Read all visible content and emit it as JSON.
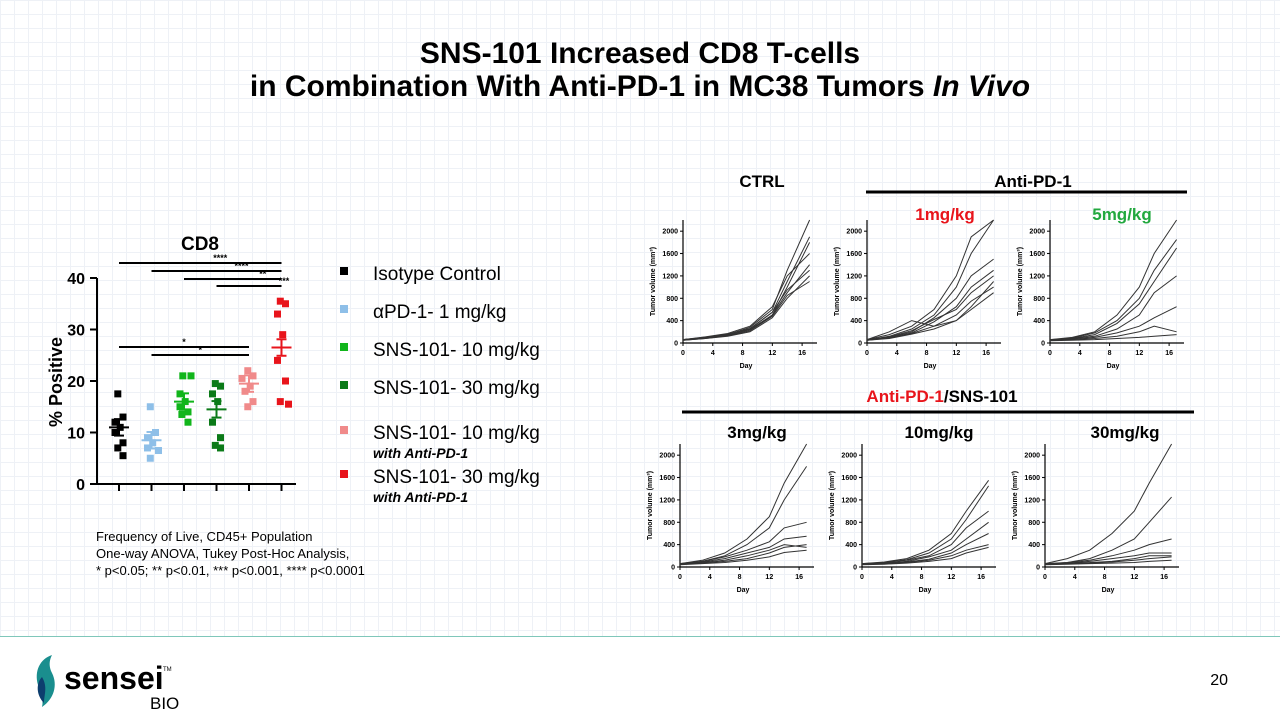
{
  "slide": {
    "title_line1": "SNS-101 Increased CD8 T-cells",
    "title_line2_main": "in Combination With Anti-PD-1 in MC38 Tumors ",
    "title_line2_italic": "In Vivo",
    "page_number": "20",
    "notes": [
      "Frequency of Live, CD45+ Population",
      "One-way ANOVA, Tukey Post-Hoc Analysis,",
      "* p<0.05; ** p<0.01, *** p<0.001, **** p<0.0001"
    ],
    "logo_word": "sensei",
    "logo_tm": "TM",
    "logo_sub": "BIO",
    "colors": {
      "red": "#e8141b",
      "green": "#22a83f",
      "teal": "#1a8e8e"
    }
  },
  "chart_data": [
    {
      "type": "scatter",
      "title": "CD8",
      "ylabel": "% Positive",
      "ylim": [
        0,
        40
      ],
      "yticks": [
        "0",
        "10",
        "20",
        "30",
        "40"
      ],
      "series": [
        {
          "name": "Isotype Control",
          "color": "#000000",
          "values": [
            17.5,
            13,
            12,
            11,
            10,
            8,
            7,
            5.5
          ],
          "mean": 11
        },
        {
          "name": "αPD-1- 1 mg/kg",
          "color": "#8ebfe8",
          "values": [
            15,
            10,
            9,
            8,
            7,
            6.5,
            5
          ],
          "mean": 8.5
        },
        {
          "name": "SNS-101- 10 mg/kg",
          "color": "#11b51b",
          "values": [
            21,
            21,
            17.5,
            16,
            15,
            14,
            13.5,
            12
          ],
          "mean": 16
        },
        {
          "name": "SNS-101- 30 mg/kg",
          "color": "#0b7a18",
          "values": [
            19.5,
            19,
            17.5,
            16,
            12,
            9,
            7.5,
            7
          ],
          "mean": 14.5
        },
        {
          "name": "SNS-101- 10 mg/kg",
          "sub": "with Anti-PD-1",
          "color": "#f08a8a",
          "values": [
            22,
            21,
            20.5,
            19,
            18,
            16,
            15
          ],
          "mean": 19.5
        },
        {
          "name": "SNS-101- 30 mg/kg",
          "sub": "with Anti-PD-1",
          "color": "#e8141b",
          "values": [
            35.5,
            35,
            33,
            29,
            24,
            20,
            16,
            15.5
          ],
          "mean": 26.5
        }
      ],
      "significance": [
        {
          "from": 0,
          "to": 5,
          "label": "****"
        },
        {
          "from": 1,
          "to": 5,
          "label": "****"
        },
        {
          "from": 2,
          "to": 5,
          "label": "**"
        },
        {
          "from": 3,
          "to": 5,
          "label": "***"
        },
        {
          "from": 0,
          "to": 4,
          "label": "*"
        },
        {
          "from": 1,
          "to": 4,
          "label": "*"
        }
      ]
    },
    {
      "type": "line",
      "panels": [
        {
          "label": "CTRL",
          "color": "#000000",
          "xlabel": "Day",
          "ylabel": "Tumor volume (mm³)",
          "lines": [
            [
              60,
              100,
              150,
              280,
              600,
              1300,
              2200
            ],
            [
              60,
              90,
              140,
              250,
              550,
              1100,
              1900
            ],
            [
              50,
              80,
              130,
              220,
              500,
              1000,
              1800
            ],
            [
              60,
              110,
              170,
              300,
              650,
              1200,
              1600
            ],
            [
              50,
              90,
              140,
              240,
              500,
              900,
              1400
            ],
            [
              60,
              100,
              160,
              260,
              550,
              950,
              1300
            ],
            [
              50,
              80,
              120,
              200,
              450,
              800,
              1200
            ],
            [
              60,
              90,
              130,
              220,
              480,
              850,
              1100
            ]
          ]
        },
        {
          "label": "1mg/kg",
          "color": "#e8141b",
          "xlabel": "Day",
          "ylabel": "Tumor volume (mm³)",
          "lines": [
            [
              60,
              150,
              300,
              600,
              1200,
              1900,
              2300
            ],
            [
              50,
              120,
              250,
              500,
              1000,
              1600,
              2200
            ],
            [
              60,
              100,
              200,
              450,
              800,
              1200,
              1500
            ],
            [
              50,
              90,
              180,
              380,
              650,
              1000,
              1300
            ],
            [
              60,
              110,
              220,
              420,
              600,
              900,
              1200
            ],
            [
              50,
              100,
              170,
              300,
              500,
              750,
              1000
            ],
            [
              60,
              200,
              400,
              300,
              400,
              600,
              900
            ],
            [
              50,
              80,
              160,
              250,
              400,
              650,
              1100
            ]
          ]
        },
        {
          "label": "5mg/kg",
          "color": "#22a83f",
          "xlabel": "Day",
          "ylabel": "Tumor volume (mm³)",
          "lines": [
            [
              60,
              100,
              200,
              500,
              1000,
              1600,
              2200
            ],
            [
              50,
              90,
              180,
              400,
              800,
              1300,
              1850
            ],
            [
              60,
              80,
              150,
              350,
              700,
              1100,
              1700
            ],
            [
              50,
              80,
              120,
              250,
              500,
              900,
              1200
            ],
            [
              60,
              70,
              100,
              180,
              300,
              450,
              650
            ],
            [
              50,
              60,
              80,
              120,
              200,
              300,
              200
            ],
            [
              40,
              50,
              60,
              80,
              100,
              120,
              150
            ]
          ]
        },
        {
          "label": "3mg/kg",
          "xlabel": "Day",
          "ylabel": "Tumor volume (mm³)",
          "lines": [
            [
              60,
              120,
              250,
              500,
              900,
              1500,
              2300
            ],
            [
              50,
              100,
              200,
              400,
              700,
              1200,
              1800
            ],
            [
              60,
              100,
              180,
              300,
              450,
              700,
              800
            ],
            [
              50,
              90,
              150,
              250,
              350,
              500,
              550
            ],
            [
              60,
              80,
              120,
              200,
              300,
              400,
              350
            ],
            [
              50,
              70,
              100,
              150,
              250,
              350,
              400
            ],
            [
              40,
              60,
              80,
              120,
              180,
              260,
              300
            ]
          ]
        },
        {
          "label": "10mg/kg",
          "xlabel": "Day",
          "ylabel": "Tumor volume (mm³)",
          "lines": [
            [
              60,
              90,
              150,
              300,
              600,
              1000,
              1550
            ],
            [
              50,
              80,
              130,
              250,
              500,
              850,
              1450
            ],
            [
              60,
              80,
              120,
              200,
              400,
              700,
              1000
            ],
            [
              50,
              70,
              100,
              180,
              300,
              500,
              800
            ],
            [
              60,
              70,
              90,
              140,
              250,
              400,
              600
            ],
            [
              50,
              60,
              80,
              120,
              200,
              300,
              400
            ],
            [
              40,
              50,
              70,
              100,
              150,
              250,
              350
            ]
          ]
        },
        {
          "label": "30mg/kg",
          "xlabel": "Day",
          "ylabel": "Tumor volume (mm³)",
          "lines": [
            [
              60,
              150,
              300,
              600,
              1000,
              1500,
              2300
            ],
            [
              50,
              80,
              150,
              300,
              500,
              800,
              1250
            ],
            [
              60,
              80,
              120,
              200,
              300,
              400,
              500
            ],
            [
              50,
              70,
              100,
              150,
              200,
              250,
              250
            ],
            [
              60,
              70,
              80,
              100,
              150,
              200,
              200
            ],
            [
              50,
              60,
              70,
              90,
              120,
              150,
              180
            ],
            [
              40,
              50,
              60,
              70,
              80,
              100,
              120
            ]
          ]
        }
      ],
      "x": [
        0,
        3,
        6,
        9,
        12,
        14,
        17
      ],
      "xticks": [
        "0",
        "4",
        "8",
        "12",
        "16"
      ],
      "yticks": [
        "0",
        "400",
        "800",
        "1200",
        "1600",
        "2000"
      ],
      "ylim": [
        0,
        2200
      ],
      "xlim": [
        0,
        18
      ],
      "group_labels": {
        "anti_pd1": "Anti-PD-1",
        "combo_red": "Anti-PD-1",
        "combo_black": "/SNS-101"
      }
    }
  ]
}
